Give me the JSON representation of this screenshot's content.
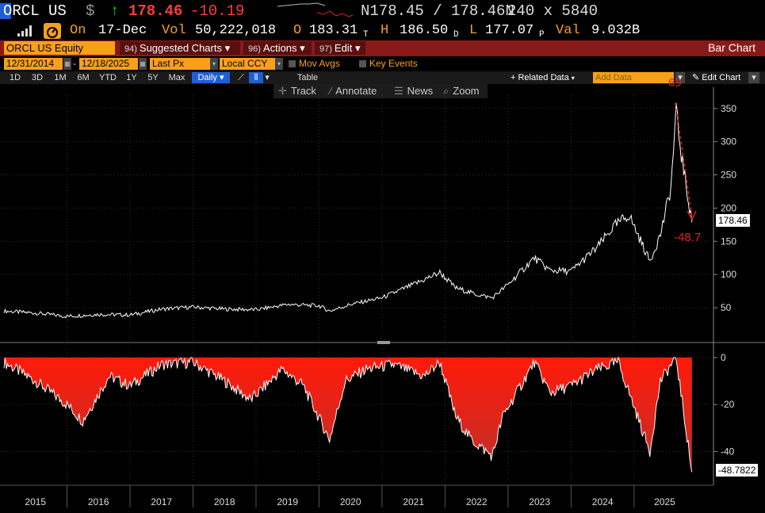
{
  "header": {
    "ticker": "ORCL US",
    "currency": "$",
    "arrow": "↑",
    "last": "178.46",
    "change": "-10.19",
    "bid_ask": "N178.45 / 178.46N",
    "size": "240 x 5840"
  },
  "quote": {
    "on_label": "On",
    "date": "17-Dec",
    "vol_label": "Vol",
    "vol": "50,222,018",
    "open_label": "O",
    "open": "183.31",
    "open_src": "T",
    "high_label": "H",
    "high": "186.50",
    "high_src": "D",
    "low_label": "L",
    "low": "177.07",
    "low_src": "P",
    "val_label": "Val",
    "val": "9.032B"
  },
  "cmdbar": {
    "security": "ORCL US Equity",
    "suggested_num": "94)",
    "suggested": "Suggested Charts",
    "actions_num": "96)",
    "actions": "Actions",
    "edit_num": "97)",
    "edit": "Edit",
    "caret": "▾",
    "title": "Bar Chart"
  },
  "options": {
    "start_date": "12/31/2014",
    "end_date": "12/18/2025",
    "field": "Last Px",
    "ccy": "Local CCY",
    "mov_avgs": "Mov Avgs",
    "key_events": "Key Events"
  },
  "periods": {
    "items": [
      "1D",
      "3D",
      "1M",
      "6M",
      "YTD",
      "1Y",
      "5Y",
      "Max"
    ],
    "frequency": "Daily",
    "table": "Table",
    "related_data": "+ Related Data",
    "add_data_placeholder": "Add Data",
    "edit_chart": "Edit Chart"
  },
  "toolbar": {
    "track": "Track",
    "annotate": "Annotate",
    "news": "News",
    "zoom": "Zoom"
  },
  "annotations": {
    "top_label": "69",
    "drawdown_label": "-48.7",
    "last_price_tag": "178.46",
    "drawdown_tag": "-48.7822"
  },
  "colors": {
    "accent_orange": "#f7a11a",
    "command_bar": "#8a1a1a",
    "price_line": "#ffffff",
    "drawdown_fill": "#e01010",
    "annotation": "#e0221f"
  },
  "chart_data": [
    {
      "type": "line",
      "series": [
        {
          "x": [
            "2015-01",
            "2015-07",
            "2016-01",
            "2016-07",
            "2017-01",
            "2017-07",
            "2018-01",
            "2018-07",
            "2019-01",
            "2019-07",
            "2020-01",
            "2020-03",
            "2020-07",
            "2021-01",
            "2021-07",
            "2021-12",
            "2022-03",
            "2022-07",
            "2022-10",
            "2023-01",
            "2023-06",
            "2023-09",
            "2024-01",
            "2024-06",
            "2024-09",
            "2024-12",
            "2025-04",
            "2025-06",
            "2025-08",
            "2025-09",
            "2025-10",
            "2025-12"
          ],
          "values": [
            45,
            42,
            37,
            40,
            39,
            48,
            51,
            48,
            47,
            55,
            53,
            45,
            55,
            65,
            85,
            103,
            80,
            70,
            65,
            85,
            125,
            106,
            105,
            141,
            171,
            190,
            120,
            160,
            230,
            345,
            280,
            178.46
          ]
        }
      ],
      "yticks": [
        50,
        100,
        150,
        200,
        250,
        300,
        350
      ],
      "ylim": [
        0,
        370
      ]
    },
    {
      "type": "area",
      "series": [
        {
          "x": [
            "2015-01",
            "2015-07",
            "2016-01",
            "2016-04",
            "2016-09",
            "2017-01",
            "2017-07",
            "2018-01",
            "2018-07",
            "2018-12",
            "2019-06",
            "2019-10",
            "2020-03",
            "2020-06",
            "2020-10",
            "2021-03",
            "2021-09",
            "2021-12",
            "2022-03",
            "2022-06",
            "2022-10",
            "2022-12",
            "2023-06",
            "2023-09",
            "2024-01",
            "2024-06",
            "2024-10",
            "2025-04",
            "2025-06",
            "2025-09",
            "2025-12"
          ],
          "values": [
            -2,
            -10,
            -20,
            -27,
            -8,
            -12,
            -3,
            -2,
            -10,
            -18,
            -5,
            -12,
            -35,
            -10,
            -5,
            -3,
            -8,
            -2,
            -25,
            -35,
            -42,
            -25,
            -2,
            -15,
            -12,
            -5,
            -2,
            -40,
            -10,
            0,
            -48.7822
          ]
        }
      ],
      "yticks": [
        0,
        -20,
        -40
      ],
      "ylim": [
        -52,
        2
      ]
    }
  ],
  "xaxis_years": [
    "2015",
    "2016",
    "2017",
    "2018",
    "2019",
    "2020",
    "2021",
    "2022",
    "2023",
    "2024",
    "2025"
  ]
}
